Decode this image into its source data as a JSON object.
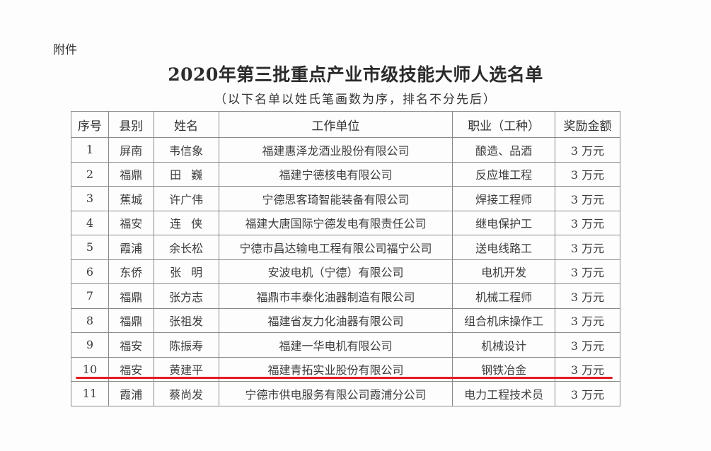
{
  "attachment_label": "附件",
  "title": "2020年第三批重点产业市级技能大师人选名单",
  "subtitle": "（以下名单以姓氏笔画数为序，排名不分先后）",
  "table": {
    "headers": [
      "序号",
      "县别",
      "姓名",
      "工作单位",
      "职业（工种）",
      "奖励金额"
    ],
    "rows": [
      [
        "1",
        "屏南",
        "韦信象",
        "福建惠泽龙酒业股份有限公司",
        "酿造、品酒",
        "3 万元"
      ],
      [
        "2",
        "福鼎",
        "田巍",
        "福建宁德核电有限公司",
        "反应堆工程",
        "3 万元"
      ],
      [
        "3",
        "蕉城",
        "许广伟",
        "宁德思客琦智能装备有限公司",
        "焊接工程师",
        "3 万元"
      ],
      [
        "4",
        "福安",
        "连侠",
        "福建大唐国际宁德发电有限责任公司",
        "继电保护工",
        "3 万元"
      ],
      [
        "5",
        "霞浦",
        "余长松",
        "宁德市昌达输电工程有限公司福宁公司",
        "送电线路工",
        "3 万元"
      ],
      [
        "6",
        "东侨",
        "张明",
        "安波电机（宁德）有限公司",
        "电机开发",
        "3 万元"
      ],
      [
        "7",
        "福鼎",
        "张方志",
        "福鼎市丰泰化油器制造有限公司",
        "机械工程师",
        "3 万元"
      ],
      [
        "8",
        "福鼎",
        "张祖发",
        "福建省友力化油器有限公司",
        "组合机床操作工",
        "3 万元"
      ],
      [
        "9",
        "福安",
        "陈振寿",
        "福建一华电机有限公司",
        "机械设计",
        "3 万元"
      ],
      [
        "10",
        "福安",
        "黄建平",
        "福建青拓实业股份有限公司",
        "钢铁冶金",
        "3 万元"
      ],
      [
        "11",
        "霞浦",
        "蔡尚发",
        "宁德市供电服务有限公司霞浦分公司",
        "电力工程技术员",
        "3 万元"
      ]
    ]
  },
  "annotation_color": "#e31b23"
}
